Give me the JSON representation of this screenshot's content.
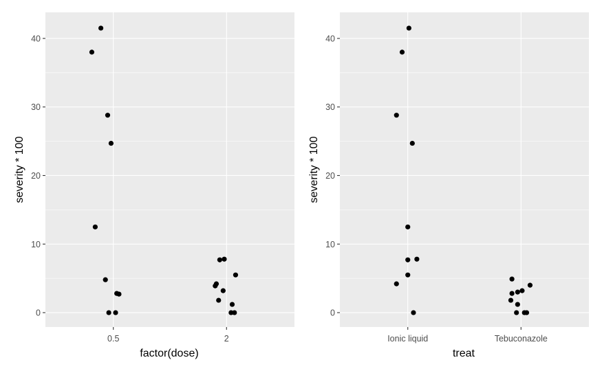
{
  "chart_data": [
    {
      "type": "scatter",
      "title": "",
      "xlabel": "factor(dose)",
      "ylabel": "severity * 100",
      "categories": [
        "0.5",
        "2"
      ],
      "ylim": [
        -2.1,
        43.8
      ],
      "yticks": [
        0,
        10,
        20,
        30,
        40
      ],
      "grid": true,
      "points": [
        {
          "x": "0.5",
          "jitter": -0.11,
          "y": 41.5
        },
        {
          "x": "0.5",
          "jitter": -0.19,
          "y": 38.0
        },
        {
          "x": "0.5",
          "jitter": -0.05,
          "y": 28.8
        },
        {
          "x": "0.5",
          "jitter": -0.02,
          "y": 24.7
        },
        {
          "x": "0.5",
          "jitter": -0.16,
          "y": 12.5
        },
        {
          "x": "0.5",
          "jitter": -0.07,
          "y": 4.8
        },
        {
          "x": "0.5",
          "jitter": 0.03,
          "y": 2.8
        },
        {
          "x": "0.5",
          "jitter": 0.05,
          "y": 2.7
        },
        {
          "x": "0.5",
          "jitter": -0.04,
          "y": 0.0
        },
        {
          "x": "0.5",
          "jitter": 0.02,
          "y": 0.0
        },
        {
          "x": "2",
          "jitter": -0.06,
          "y": 7.7
        },
        {
          "x": "2",
          "jitter": -0.02,
          "y": 7.8
        },
        {
          "x": "2",
          "jitter": 0.08,
          "y": 5.5
        },
        {
          "x": "2",
          "jitter": -0.09,
          "y": 4.2
        },
        {
          "x": "2",
          "jitter": -0.1,
          "y": 3.9
        },
        {
          "x": "2",
          "jitter": -0.03,
          "y": 3.2
        },
        {
          "x": "2",
          "jitter": -0.07,
          "y": 1.8
        },
        {
          "x": "2",
          "jitter": 0.05,
          "y": 1.2
        },
        {
          "x": "2",
          "jitter": 0.04,
          "y": 0.0
        },
        {
          "x": "2",
          "jitter": 0.07,
          "y": 0.0
        }
      ]
    },
    {
      "type": "scatter",
      "title": "",
      "xlabel": "treat",
      "ylabel": "severity * 100",
      "categories": [
        "Ionic liquid",
        "Tebuconazole"
      ],
      "ylim": [
        -2.1,
        43.8
      ],
      "yticks": [
        0,
        10,
        20,
        30,
        40
      ],
      "grid": true,
      "points": [
        {
          "x": "Ionic liquid",
          "jitter": 0.01,
          "y": 41.5
        },
        {
          "x": "Ionic liquid",
          "jitter": -0.05,
          "y": 38.0
        },
        {
          "x": "Ionic liquid",
          "jitter": -0.1,
          "y": 28.8
        },
        {
          "x": "Ionic liquid",
          "jitter": 0.04,
          "y": 24.7
        },
        {
          "x": "Ionic liquid",
          "jitter": 0.0,
          "y": 12.5
        },
        {
          "x": "Ionic liquid",
          "jitter": 0.0,
          "y": 7.7
        },
        {
          "x": "Ionic liquid",
          "jitter": 0.08,
          "y": 7.8
        },
        {
          "x": "Ionic liquid",
          "jitter": 0.0,
          "y": 5.5
        },
        {
          "x": "Ionic liquid",
          "jitter": -0.1,
          "y": 4.2
        },
        {
          "x": "Ionic liquid",
          "jitter": 0.05,
          "y": 0.0
        },
        {
          "x": "Tebuconazole",
          "jitter": -0.08,
          "y": 4.9
        },
        {
          "x": "Tebuconazole",
          "jitter": 0.08,
          "y": 4.0
        },
        {
          "x": "Tebuconazole",
          "jitter": 0.01,
          "y": 3.2
        },
        {
          "x": "Tebuconazole",
          "jitter": -0.03,
          "y": 3.0
        },
        {
          "x": "Tebuconazole",
          "jitter": -0.08,
          "y": 2.8
        },
        {
          "x": "Tebuconazole",
          "jitter": -0.09,
          "y": 1.8
        },
        {
          "x": "Tebuconazole",
          "jitter": -0.03,
          "y": 1.2
        },
        {
          "x": "Tebuconazole",
          "jitter": -0.04,
          "y": 0.0
        },
        {
          "x": "Tebuconazole",
          "jitter": 0.03,
          "y": 0.0
        },
        {
          "x": "Tebuconazole",
          "jitter": 0.05,
          "y": 0.0
        }
      ]
    }
  ],
  "colors": {
    "panel_background": "#ebebeb",
    "grid_major": "#ffffff",
    "point": "#000000",
    "tick_label": "#4d4d4d"
  }
}
